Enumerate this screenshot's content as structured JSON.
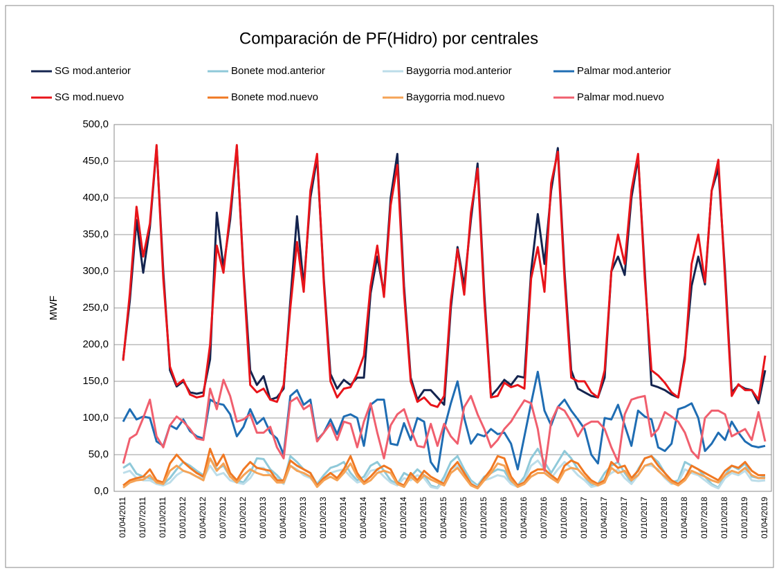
{
  "chart_data": {
    "type": "line",
    "title": "Comparación de PF(Hidro) por centrales",
    "y_label": "MWF",
    "categories": [
      "01/04/2011",
      null,
      null,
      "01/07/2011",
      null,
      null,
      "01/10/2011",
      null,
      null,
      "01/01/2012",
      null,
      null,
      "01/04/2012",
      null,
      null,
      "01/07/2012",
      null,
      null,
      "01/10/2012",
      null,
      null,
      "01/01/2013",
      null,
      null,
      "01/04/2013",
      null,
      null,
      "01/07/2013",
      null,
      null,
      "01/10/2013",
      null,
      null,
      "01/01/2014",
      null,
      null,
      "01/04/2014",
      null,
      null,
      "01/07/2014",
      null,
      null,
      "01/10/2014",
      null,
      null,
      "01/01/2015",
      null,
      null,
      "01/04/2015",
      null,
      null,
      "01/07/2015",
      null,
      null,
      "01/10/2015",
      null,
      null,
      "01/01/2016",
      null,
      null,
      "01/04/2016",
      null,
      null,
      "01/07/2016",
      null,
      null,
      "01/10/2016",
      null,
      null,
      "01/01/2017",
      null,
      null,
      "01/04/2017",
      null,
      null,
      "01/07/2017",
      null,
      null,
      "01/10/2017",
      null,
      null,
      "01/01/2018",
      null,
      null,
      "01/04/2018",
      null,
      null,
      "01/07/2018",
      null,
      null,
      "01/10/2018",
      null,
      null,
      "01/01/2019",
      null,
      null,
      "01/04/2019"
    ],
    "ylim": [
      0,
      500
    ],
    "yticks": [
      {
        "value": 0,
        "label": "0,0"
      },
      {
        "value": 50,
        "label": "50,0"
      },
      {
        "value": 100,
        "label": "100,0"
      },
      {
        "value": 150,
        "label": "150,0"
      },
      {
        "value": 200,
        "label": "200,0"
      },
      {
        "value": 250,
        "label": "250,0"
      },
      {
        "value": 300,
        "label": "300,0"
      },
      {
        "value": 350,
        "label": "350,0"
      },
      {
        "value": 400,
        "label": "400,0"
      },
      {
        "value": 450,
        "label": "450,0"
      },
      {
        "value": 500,
        "label": "500,0"
      }
    ],
    "grid": true,
    "legend": "top",
    "series": [
      {
        "name": "SG mod.anterior",
        "color": "#14244f",
        "values": [
          180,
          260,
          370,
          298,
          360,
          470,
          300,
          165,
          143,
          150,
          135,
          133,
          135,
          180,
          380,
          305,
          370,
          470,
          300,
          165,
          145,
          157,
          125,
          128,
          140,
          260,
          375,
          280,
          400,
          455,
          290,
          160,
          140,
          152,
          145,
          155,
          155,
          270,
          320,
          270,
          400,
          460,
          280,
          155,
          125,
          138,
          138,
          128,
          118,
          250,
          333,
          280,
          370,
          447,
          270,
          130,
          140,
          152,
          145,
          157,
          155,
          300,
          378,
          310,
          410,
          468,
          300,
          165,
          140,
          135,
          130,
          128,
          155,
          300,
          320,
          295,
          400,
          455,
          300,
          145,
          142,
          138,
          132,
          128,
          185,
          280,
          320,
          282,
          410,
          440,
          300,
          135,
          145,
          140,
          138,
          120,
          165
        ]
      },
      {
        "name": "Bonete mod.anterior",
        "color": "#8fc9d9",
        "values": [
          32,
          38,
          24,
          20,
          18,
          14,
          10,
          18,
          30,
          40,
          35,
          28,
          22,
          45,
          30,
          35,
          20,
          15,
          12,
          25,
          45,
          44,
          30,
          22,
          12,
          48,
          40,
          30,
          25,
          10,
          22,
          32,
          35,
          40,
          25,
          15,
          20,
          35,
          40,
          28,
          15,
          10,
          25,
          20,
          30,
          22,
          8,
          5,
          20,
          40,
          48,
          30,
          15,
          8,
          20,
          25,
          30,
          28,
          12,
          8,
          20,
          45,
          58,
          40,
          25,
          40,
          55,
          45,
          30,
          20,
          8,
          10,
          25,
          35,
          40,
          25,
          12,
          30,
          45,
          48,
          40,
          25,
          12,
          15,
          40,
          35,
          30,
          20,
          10,
          5,
          22,
          35,
          30,
          38,
          20,
          18,
          20
        ]
      },
      {
        "name": "Baygorria mod.anterior",
        "color": "#bcdde9",
        "values": [
          25,
          28,
          18,
          15,
          15,
          10,
          8,
          12,
          22,
          28,
          25,
          20,
          18,
          35,
          22,
          25,
          15,
          12,
          10,
          18,
          32,
          32,
          22,
          18,
          10,
          35,
          30,
          22,
          18,
          8,
          15,
          25,
          28,
          30,
          20,
          12,
          15,
          28,
          30,
          20,
          12,
          8,
          18,
          15,
          22,
          18,
          6,
          4,
          15,
          30,
          35,
          22,
          12,
          6,
          15,
          18,
          22,
          20,
          10,
          6,
          15,
          35,
          42,
          30,
          18,
          30,
          40,
          32,
          22,
          15,
          6,
          8,
          18,
          25,
          30,
          18,
          10,
          22,
          35,
          35,
          30,
          18,
          10,
          12,
          30,
          25,
          22,
          15,
          8,
          4,
          18,
          25,
          22,
          28,
          15,
          14,
          15
        ]
      },
      {
        "name": "Palmar mod.anterior",
        "color": "#1f6db3",
        "values": [
          95,
          112,
          98,
          102,
          100,
          68,
          62,
          90,
          85,
          98,
          82,
          75,
          72,
          125,
          120,
          118,
          105,
          75,
          88,
          112,
          92,
          100,
          80,
          72,
          50,
          130,
          138,
          118,
          125,
          70,
          80,
          98,
          78,
          102,
          105,
          100,
          62,
          118,
          125,
          125,
          65,
          63,
          93,
          70,
          100,
          95,
          40,
          27,
          85,
          120,
          150,
          100,
          65,
          78,
          75,
          85,
          78,
          80,
          65,
          30,
          75,
          120,
          163,
          110,
          90,
          115,
          125,
          110,
          98,
          85,
          50,
          38,
          100,
          98,
          118,
          90,
          62,
          110,
          102,
          98,
          60,
          55,
          65,
          112,
          115,
          120,
          100,
          55,
          65,
          80,
          70,
          95,
          80,
          68,
          62,
          60,
          62
        ]
      },
      {
        "name": "SG mod.nuevo",
        "color": "#e8141a",
        "values": [
          178,
          270,
          388,
          320,
          365,
          472,
          290,
          170,
          145,
          152,
          132,
          128,
          130,
          200,
          335,
          298,
          380,
          472,
          295,
          145,
          135,
          140,
          125,
          122,
          145,
          250,
          340,
          272,
          410,
          460,
          285,
          150,
          128,
          140,
          142,
          160,
          185,
          280,
          335,
          265,
          390,
          445,
          270,
          150,
          122,
          128,
          118,
          115,
          130,
          260,
          330,
          268,
          380,
          440,
          260,
          128,
          130,
          148,
          142,
          145,
          140,
          290,
          333,
          272,
          420,
          463,
          290,
          155,
          150,
          150,
          135,
          128,
          165,
          300,
          350,
          310,
          410,
          460,
          290,
          165,
          158,
          148,
          135,
          128,
          180,
          310,
          350,
          285,
          410,
          452,
          290,
          130,
          146,
          138,
          138,
          125,
          185
        ]
      },
      {
        "name": "Bonete mod.nuevo",
        "color": "#f07822",
        "values": [
          8,
          15,
          18,
          20,
          30,
          15,
          12,
          38,
          50,
          40,
          32,
          25,
          20,
          58,
          35,
          50,
          25,
          15,
          30,
          40,
          32,
          30,
          28,
          15,
          15,
          42,
          35,
          30,
          25,
          8,
          18,
          25,
          18,
          30,
          48,
          25,
          12,
          20,
          30,
          35,
          30,
          12,
          8,
          25,
          15,
          28,
          20,
          15,
          10,
          30,
          40,
          25,
          10,
          5,
          18,
          30,
          48,
          45,
          20,
          8,
          12,
          25,
          30,
          30,
          22,
          15,
          35,
          42,
          38,
          25,
          15,
          10,
          15,
          40,
          32,
          35,
          18,
          28,
          45,
          48,
          35,
          25,
          15,
          10,
          18,
          35,
          30,
          25,
          20,
          15,
          28,
          35,
          32,
          40,
          28,
          22,
          22
        ]
      },
      {
        "name": "Baygorria mod.nuevo",
        "color": "#f5a356",
        "values": [
          5,
          12,
          15,
          16,
          22,
          12,
          10,
          28,
          35,
          28,
          25,
          20,
          15,
          45,
          28,
          38,
          20,
          12,
          22,
          30,
          25,
          22,
          22,
          12,
          12,
          35,
          28,
          25,
          20,
          6,
          15,
          20,
          15,
          25,
          38,
          20,
          10,
          15,
          25,
          28,
          25,
          10,
          6,
          20,
          12,
          22,
          16,
          12,
          8,
          25,
          32,
          20,
          8,
          4,
          15,
          25,
          38,
          35,
          15,
          6,
          10,
          20,
          25,
          25,
          18,
          12,
          28,
          32,
          30,
          20,
          12,
          8,
          12,
          32,
          25,
          28,
          15,
          22,
          35,
          38,
          28,
          20,
          12,
          8,
          15,
          28,
          24,
          20,
          15,
          12,
          22,
          28,
          25,
          32,
          22,
          18,
          18
        ]
      },
      {
        "name": "Palmar mod.nuevo",
        "color": "#f05f6e",
        "values": [
          38,
          72,
          78,
          100,
          125,
          75,
          60,
          90,
          102,
          95,
          85,
          72,
          70,
          140,
          112,
          152,
          130,
          95,
          98,
          105,
          80,
          80,
          88,
          60,
          45,
          122,
          128,
          112,
          118,
          68,
          80,
          92,
          70,
          95,
          92,
          60,
          95,
          120,
          80,
          45,
          90,
          105,
          112,
          85,
          62,
          60,
          92,
          62,
          92,
          75,
          65,
          115,
          130,
          105,
          85,
          60,
          70,
          85,
          95,
          110,
          124,
          120,
          85,
          28,
          95,
          115,
          110,
          95,
          75,
          90,
          95,
          95,
          85,
          60,
          40,
          105,
          125,
          128,
          130,
          75,
          85,
          108,
          102,
          95,
          80,
          55,
          45,
          100,
          110,
          110,
          105,
          75,
          80,
          85,
          70,
          108,
          68
        ]
      }
    ]
  }
}
